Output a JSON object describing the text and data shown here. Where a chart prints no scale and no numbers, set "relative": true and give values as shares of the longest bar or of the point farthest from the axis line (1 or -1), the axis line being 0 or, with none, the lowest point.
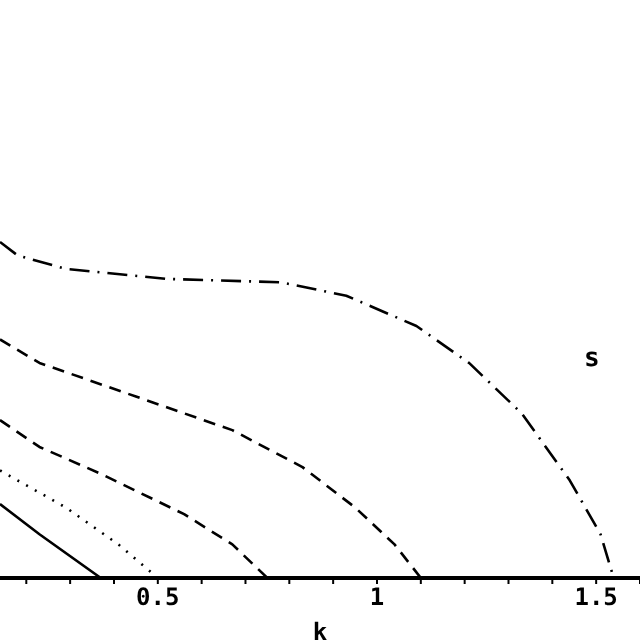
{
  "chart_data": {
    "type": "line",
    "xlabel": "k",
    "relative": true,
    "xlim": [
      0.14,
      1.6
    ],
    "xticks": [
      {
        "value": 0.2,
        "label": null
      },
      {
        "value": 0.3,
        "label": null
      },
      {
        "value": 0.4,
        "label": null
      },
      {
        "value": 0.5,
        "label": "0.5"
      },
      {
        "value": 0.6,
        "label": null
      },
      {
        "value": 0.7,
        "label": null
      },
      {
        "value": 0.8,
        "label": null
      },
      {
        "value": 0.9,
        "label": null
      },
      {
        "value": 1,
        "label": "1"
      },
      {
        "value": 1.1,
        "label": null
      },
      {
        "value": 1.2,
        "label": null
      },
      {
        "value": 1.3,
        "label": null
      },
      {
        "value": 1.4,
        "label": null
      },
      {
        "value": 1.5,
        "label": "1.5"
      },
      {
        "value": 1.6,
        "label": null
      }
    ],
    "marker": "none",
    "annotations": [
      "s"
    ],
    "series": [
      {
        "color": "#000000",
        "line_style": "solid",
        "x": [
          0.14,
          0.23,
          0.37
        ],
        "values": [
          0.22,
          0.13,
          0
        ]
      },
      {
        "color": "#000000",
        "line_style": "dotted",
        "x": [
          0.14,
          0.29,
          0.41,
          0.5
        ],
        "values": [
          0.32,
          0.21,
          0.1,
          0
        ]
      },
      {
        "color": "#000000",
        "line_style": "dashed",
        "x": [
          0.14,
          0.23,
          0.37,
          0.56,
          0.67,
          0.75
        ],
        "values": [
          0.47,
          0.39,
          0.31,
          0.19,
          0.1,
          0
        ]
      },
      {
        "color": "#000000",
        "line_style": "dashed",
        "x": [
          0.14,
          0.23,
          0.45,
          0.67,
          0.83,
          0.95,
          1.04,
          1.1
        ],
        "values": [
          0.71,
          0.64,
          0.54,
          0.44,
          0.33,
          0.21,
          0.1,
          0
        ]
      },
      {
        "color": "#000000",
        "line_style": "dashdot",
        "x": [
          0.14,
          0.18,
          0.29,
          0.52,
          0.78,
          0.93,
          1.09,
          1.21,
          1.33,
          1.44,
          1.51,
          1.54
        ],
        "values": [
          1,
          0.96,
          0.92,
          0.89,
          0.88,
          0.84,
          0.75,
          0.64,
          0.49,
          0.29,
          0.13,
          0
        ]
      }
    ]
  }
}
